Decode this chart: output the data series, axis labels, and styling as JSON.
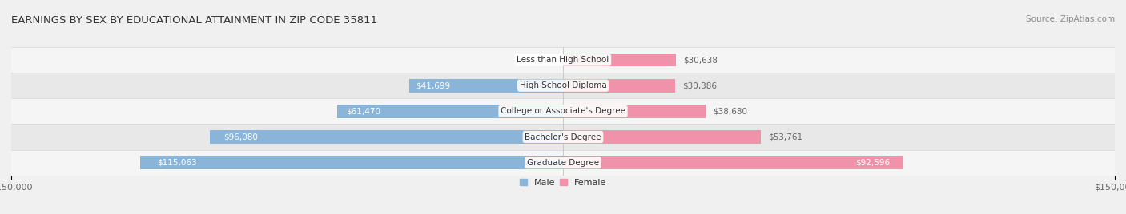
{
  "title": "EARNINGS BY SEX BY EDUCATIONAL ATTAINMENT IN ZIP CODE 35811",
  "source": "Source: ZipAtlas.com",
  "categories": [
    "Less than High School",
    "High School Diploma",
    "College or Associate's Degree",
    "Bachelor's Degree",
    "Graduate Degree"
  ],
  "male_values": [
    0,
    41699,
    61470,
    96080,
    115063
  ],
  "female_values": [
    30638,
    30386,
    38680,
    53761,
    92596
  ],
  "male_color": "#8ab4d8",
  "female_color": "#f093aa",
  "bar_height": 0.52,
  "xlim": 150000,
  "background_color": "#f0f0f0",
  "row_colors": [
    "#f5f5f5",
    "#e8e8e8",
    "#f5f5f5",
    "#e8e8e8",
    "#f5f5f5"
  ],
  "label_color_inside": "#ffffff",
  "label_color_outside": "#666666",
  "axis_label_color": "#666666",
  "title_color": "#333333",
  "title_fontsize": 9.5,
  "source_fontsize": 7.5,
  "label_fontsize": 7.5,
  "tick_fontsize": 8,
  "legend_fontsize": 8,
  "inside_threshold": 20000
}
